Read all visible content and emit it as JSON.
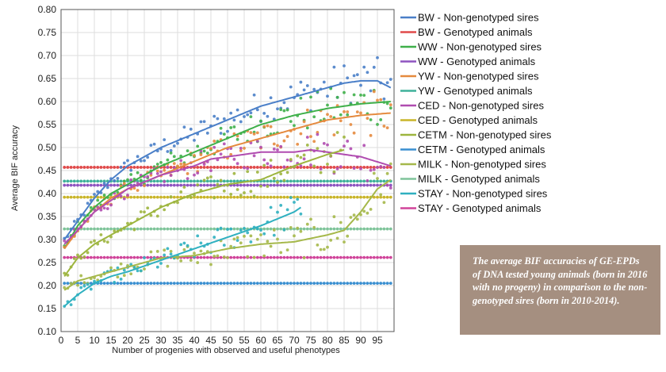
{
  "chart_data": {
    "type": "scatter",
    "title": "",
    "xlabel": "Number of progenies with observed and useful phenotypes",
    "ylabel": "Average BIF accuracy",
    "xlim": [
      0,
      100
    ],
    "ylim": [
      0.1,
      0.8
    ],
    "x_ticks": [
      "0",
      "5",
      "10",
      "15",
      "20",
      "25",
      "30",
      "35",
      "40",
      "45",
      "50",
      "55",
      "60",
      "65",
      "70",
      "75",
      "80",
      "85",
      "90",
      "95"
    ],
    "y_ticks": [
      "0.10",
      "0.15",
      "0.20",
      "0.25",
      "0.30",
      "0.35",
      "0.40",
      "0.45",
      "0.50",
      "0.55",
      "0.60",
      "0.65",
      "0.70",
      "0.75",
      "0.80"
    ],
    "grid": true,
    "legend_position": "right",
    "series": [
      {
        "name": "BW - Non-genotyped sires",
        "color": "#4a7fc8",
        "kind": "curve",
        "x": [
          1,
          5,
          10,
          15,
          20,
          30,
          40,
          50,
          60,
          70,
          80,
          85,
          90,
          95,
          99
        ],
        "values": [
          0.3,
          0.34,
          0.39,
          0.43,
          0.46,
          0.5,
          0.53,
          0.56,
          0.59,
          0.61,
          0.63,
          0.64,
          0.645,
          0.645,
          0.63
        ]
      },
      {
        "name": "BW - Genotyped animals",
        "color": "#e04a4a",
        "kind": "flat",
        "value": 0.457
      },
      {
        "name": "WW - Non-genotyped sires",
        "color": "#3fb04a",
        "kind": "curve",
        "x": [
          1,
          5,
          10,
          15,
          20,
          30,
          40,
          50,
          60,
          70,
          80,
          90,
          99
        ],
        "values": [
          0.28,
          0.33,
          0.37,
          0.4,
          0.42,
          0.46,
          0.49,
          0.52,
          0.55,
          0.57,
          0.585,
          0.595,
          0.6
        ]
      },
      {
        "name": "WW - Genotyped animals",
        "color": "#8e54c0",
        "kind": "flat",
        "value": 0.418
      },
      {
        "name": "YW - Non-genotyped sires",
        "color": "#e58a3e",
        "kind": "curve",
        "x": [
          1,
          5,
          10,
          15,
          20,
          30,
          40,
          50,
          60,
          70,
          80,
          90,
          99
        ],
        "values": [
          0.28,
          0.32,
          0.36,
          0.39,
          0.41,
          0.44,
          0.47,
          0.5,
          0.52,
          0.54,
          0.56,
          0.57,
          0.575
        ]
      },
      {
        "name": "YW - Genotyped animals",
        "color": "#3fb19a",
        "kind": "flat",
        "value": 0.427
      },
      {
        "name": "CED - Non-genotyped sires",
        "color": "#b04cb0",
        "kind": "curve",
        "x": [
          1,
          5,
          10,
          20,
          30,
          40,
          45,
          50,
          60,
          70,
          75,
          80,
          90,
          99
        ],
        "values": [
          0.29,
          0.32,
          0.36,
          0.41,
          0.44,
          0.46,
          0.475,
          0.48,
          0.49,
          0.49,
          0.495,
          0.49,
          0.48,
          0.46
        ]
      },
      {
        "name": "CED - Genotyped animals",
        "color": "#c9b52a",
        "kind": "flat",
        "value": 0.392
      },
      {
        "name": "CETM - Non-genotyped sires",
        "color": "#9db53e",
        "kind": "curve",
        "x": [
          1,
          5,
          10,
          20,
          30,
          40,
          50,
          60,
          70,
          80,
          85
        ],
        "values": [
          0.22,
          0.26,
          0.29,
          0.33,
          0.37,
          0.4,
          0.42,
          0.43,
          0.46,
          0.485,
          0.495
        ]
      },
      {
        "name": "CETM - Genotyped animals",
        "color": "#3a8fd0",
        "kind": "flat",
        "value": 0.205
      },
      {
        "name": "MILK - Non-genotyped sires",
        "color": "#a5b84a",
        "kind": "curve",
        "x": [
          1,
          5,
          10,
          20,
          30,
          40,
          50,
          60,
          70,
          80,
          85,
          90,
          95,
          99
        ],
        "values": [
          0.19,
          0.21,
          0.22,
          0.24,
          0.26,
          0.265,
          0.28,
          0.29,
          0.295,
          0.31,
          0.32,
          0.36,
          0.41,
          0.43
        ]
      },
      {
        "name": "MILK - Genotyped animals",
        "color": "#7fc49a",
        "kind": "flat",
        "value": 0.323
      },
      {
        "name": "STAY - Non-genotyped sires",
        "color": "#2fb0c0",
        "kind": "curve",
        "x": [
          1,
          5,
          10,
          15,
          20,
          30,
          40,
          50,
          60,
          70,
          72
        ],
        "values": [
          0.155,
          0.18,
          0.205,
          0.22,
          0.23,
          0.255,
          0.28,
          0.305,
          0.33,
          0.36,
          0.37
        ]
      },
      {
        "name": "STAY - Genotyped animals",
        "color": "#d0449a",
        "kind": "flat",
        "value": 0.261
      }
    ]
  },
  "caption": "The average BIF accuracies of GE-EPDs of DNA tested young animals (born in 2016 with no progeny) in comparison to the non-genotyped sires (born in 2010-2014)."
}
